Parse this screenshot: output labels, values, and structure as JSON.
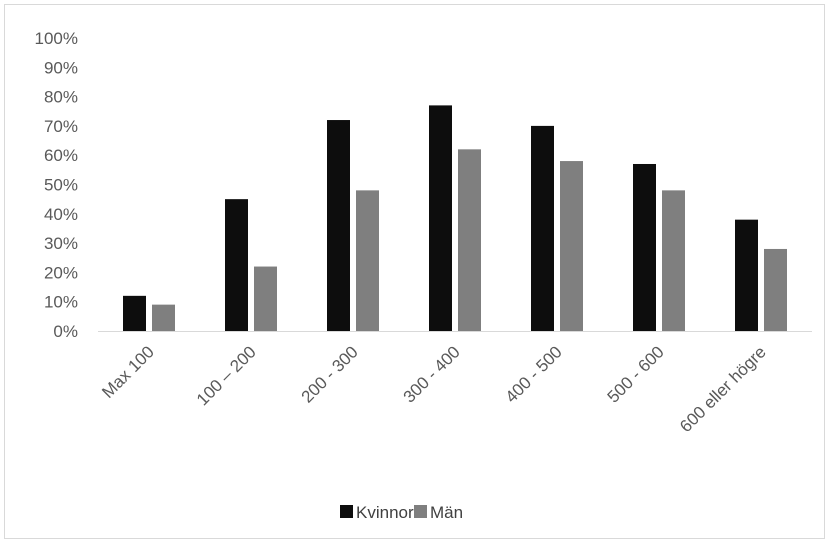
{
  "chart_data": {
    "type": "bar",
    "categories": [
      "Max 100",
      "100 – 200",
      "200 - 300",
      "300 - 400",
      "400 - 500",
      "500 - 600",
      "600 eller högre"
    ],
    "series": [
      {
        "name": "Kvinnor",
        "color": "#0d0d0d",
        "values": [
          12,
          45,
          72,
          77,
          70,
          57,
          38
        ]
      },
      {
        "name": "Män",
        "color": "#7f7f7f",
        "values": [
          9,
          22,
          48,
          62,
          58,
          48,
          28
        ]
      }
    ],
    "y_ticks": [
      "0%",
      "10%",
      "20%",
      "30%",
      "40%",
      "50%",
      "60%",
      "70%",
      "80%",
      "90%",
      "100%"
    ],
    "ylim": [
      0,
      100
    ],
    "grid": false,
    "legend_position": "bottom",
    "gridline_color": "#d9d9d9"
  }
}
